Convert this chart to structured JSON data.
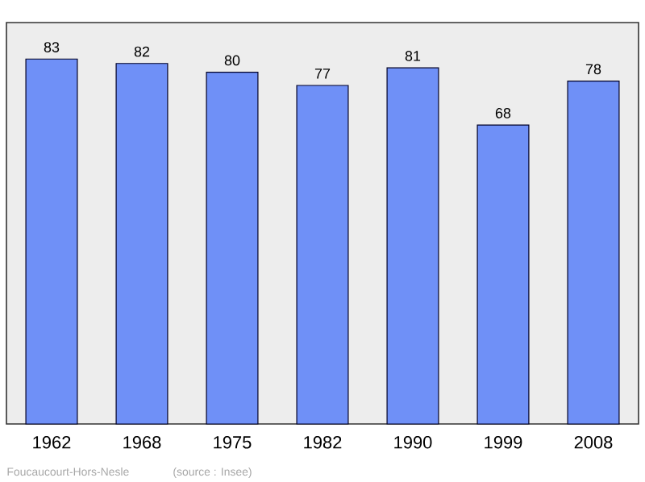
{
  "chart_data": {
    "type": "bar",
    "categories": [
      "1962",
      "1968",
      "1975",
      "1982",
      "1990",
      "1999",
      "2008"
    ],
    "values": [
      83,
      82,
      80,
      77,
      81,
      68,
      78
    ],
    "color": "#6f90f7",
    "data_labels": true,
    "annotations": [
      "Foucaucourt-Hors-Nesle",
      "(source : Insee)"
    ]
  }
}
